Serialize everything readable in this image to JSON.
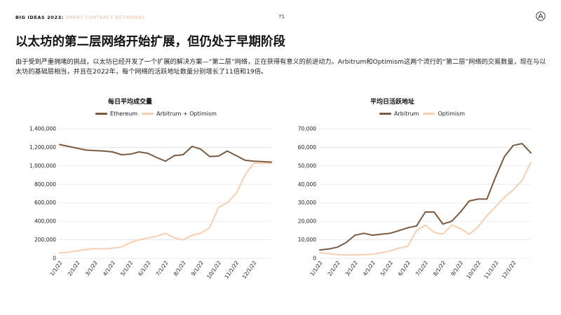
{
  "header": {
    "brand": "BIG IDEAS 2023:",
    "section": "SMART CONTRACT NETWORKS",
    "page_number": "71"
  },
  "title": "以太坊的第二层网络开始扩展，但仍处于早期阶段",
  "subtitle": "由于受到严重拥堵的挑战，以太坊已经开发了一个扩展的解决方案—“第二层”网络，正在获得有意义的前进动力。Arbitrum和Optimism这两个流行的“第二层”网络的交易数量，现在与以太坊的基础层相当，并且在2022年，每个网络的活跃地址数量分别增长了11倍和19倍。",
  "colors": {
    "dark": "#7a5a40",
    "light": "#f7cfb0",
    "grid": "#e3e3e3"
  },
  "chart_data": [
    {
      "type": "line",
      "title": "每日平均成交量",
      "x_ticks": [
        "1/1/22",
        "2/1/22",
        "3/1/22",
        "4/1/22",
        "5/1/22",
        "6/1/22",
        "7/1/22",
        "8/1/22",
        "9/1/22",
        "10/1/22",
        "11/1/22",
        "12/1/22"
      ],
      "y_ticks": [
        "0",
        "200,000",
        "400,000",
        "600,000",
        "800,000",
        "1,000,000",
        "1,200,000",
        "1,400,000"
      ],
      "ylim": [
        0,
        1400000
      ],
      "grid": true,
      "legend_position": "top",
      "x": [
        0,
        0.5,
        1,
        1.5,
        2,
        2.5,
        3,
        3.5,
        4,
        4.5,
        5,
        5.5,
        6,
        6.5,
        7,
        7.5,
        8,
        8.5,
        9,
        9.5,
        10,
        10.5,
        11,
        11.5,
        12
      ],
      "series": [
        {
          "name": "Ethereum",
          "color": "#7a5a40",
          "values": [
            1230000,
            1210000,
            1190000,
            1170000,
            1165000,
            1160000,
            1150000,
            1120000,
            1125000,
            1150000,
            1135000,
            1090000,
            1050000,
            1110000,
            1120000,
            1210000,
            1180000,
            1100000,
            1105000,
            1160000,
            1110000,
            1060000,
            1050000,
            1045000,
            1040000
          ]
        },
        {
          "name": "Arbitrum + Optimism",
          "color": "#f7cfb0",
          "values": [
            60000,
            65000,
            80000,
            95000,
            105000,
            100000,
            110000,
            120000,
            170000,
            200000,
            220000,
            240000,
            270000,
            220000,
            200000,
            250000,
            270000,
            330000,
            550000,
            600000,
            700000,
            900000,
            1030000,
            1025000,
            1030000
          ]
        }
      ]
    },
    {
      "type": "line",
      "title": "平均日活跃地址",
      "x_ticks": [
        "1/1/22",
        "2/1/22",
        "3/1/22",
        "4/1/22",
        "5/1/22",
        "6/1/22",
        "7/1/22",
        "8/1/22",
        "9/1/22",
        "10/1/22",
        "11/1/22",
        "12/1/22"
      ],
      "y_ticks": [
        "0",
        "10,000",
        "20,000",
        "30,000",
        "40,000",
        "50,000",
        "60,000",
        "70,000"
      ],
      "ylim": [
        0,
        70000
      ],
      "grid": true,
      "legend_position": "top",
      "x": [
        0,
        0.5,
        1,
        1.5,
        2,
        2.5,
        3,
        3.5,
        4,
        4.5,
        5,
        5.5,
        6,
        6.5,
        7,
        7.5,
        8,
        8.5,
        9,
        9.5,
        10,
        10.5,
        11,
        11.5,
        12
      ],
      "series": [
        {
          "name": "Arbitrum",
          "color": "#7a5a40",
          "values": [
            4500,
            5000,
            6000,
            8500,
            12500,
            13500,
            12500,
            13000,
            13500,
            15000,
            16500,
            17500,
            25000,
            25000,
            18500,
            20000,
            25000,
            31000,
            32000,
            32000,
            44000,
            55000,
            61000,
            62000,
            57000
          ]
        },
        {
          "name": "Optimism",
          "color": "#f7cfb0",
          "values": [
            3000,
            2500,
            2000,
            1800,
            1800,
            2000,
            2200,
            3000,
            4000,
            5500,
            6500,
            15000,
            18000,
            14000,
            13000,
            18000,
            16000,
            13000,
            17000,
            23000,
            28000,
            33000,
            37000,
            42000,
            52000
          ]
        }
      ]
    }
  ]
}
